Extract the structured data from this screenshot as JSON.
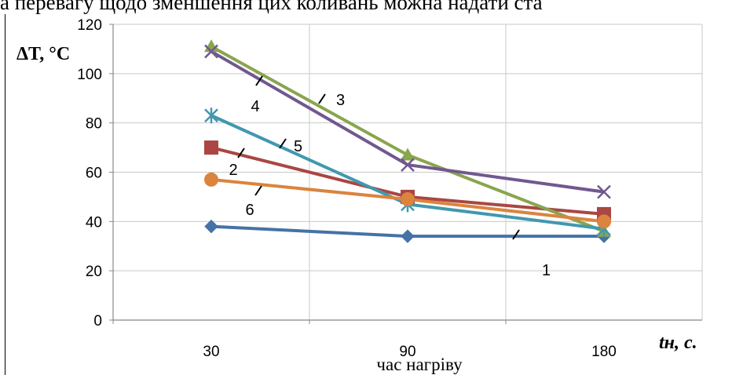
{
  "header": {
    "text": "а перевагу щодо зменшення цих коливань можна надати ста"
  },
  "chart_data": {
    "type": "line",
    "categories": [
      "30",
      "90",
      "180"
    ],
    "ylim": [
      0,
      120
    ],
    "yticks": [
      "0",
      "20",
      "40",
      "60",
      "80",
      "100",
      "120"
    ],
    "ylabel": "ΔT, °C",
    "xlabel": "tн, c.",
    "caption": "час нагріву",
    "grid": true,
    "series": [
      {
        "name": "1",
        "color": "#4572a7",
        "marker": "diamond",
        "values": [
          38,
          34,
          34
        ]
      },
      {
        "name": "2",
        "color": "#aa4643",
        "marker": "square",
        "values": [
          70,
          50,
          43
        ]
      },
      {
        "name": "3",
        "color": "#89a54e",
        "marker": "triangle",
        "values": [
          111,
          67,
          36
        ]
      },
      {
        "name": "4",
        "color": "#71588f",
        "marker": "x",
        "values": [
          109,
          63,
          52
        ]
      },
      {
        "name": "5",
        "color": "#4198af",
        "marker": "star",
        "values": [
          83,
          47,
          37
        ]
      },
      {
        "name": "6",
        "color": "#db843d",
        "marker": "circle",
        "values": [
          57,
          49,
          40
        ]
      }
    ]
  }
}
